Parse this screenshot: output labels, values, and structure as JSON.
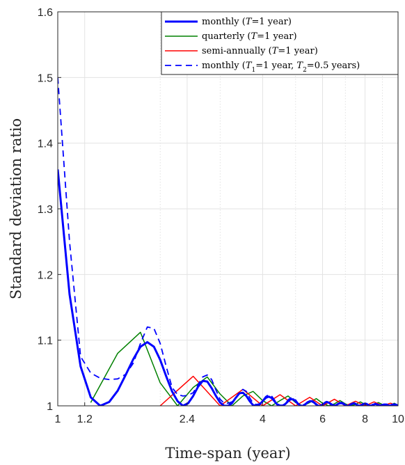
{
  "chart_data": {
    "type": "line",
    "xlabel": "Time-span (year)",
    "ylabel": "Standard deviation ratio",
    "x_scale": "log",
    "xlim": [
      1,
      10
    ],
    "ylim": [
      1,
      1.6
    ],
    "x_ticks": [
      {
        "value": 1,
        "label": "1"
      },
      {
        "value": 1.2,
        "label": "1.2"
      },
      {
        "value": 2.4,
        "label": "2.4"
      },
      {
        "value": 4,
        "label": "4"
      },
      {
        "value": 6,
        "label": "6"
      },
      {
        "value": 8,
        "label": "8"
      },
      {
        "value": 10,
        "label": "10"
      }
    ],
    "y_ticks": [
      {
        "value": 1,
        "label": "1"
      },
      {
        "value": 1.1,
        "label": "1.1"
      },
      {
        "value": 1.2,
        "label": "1.2"
      },
      {
        "value": 1.3,
        "label": "1.3"
      },
      {
        "value": 1.4,
        "label": "1.4"
      },
      {
        "value": 1.5,
        "label": "1.5"
      },
      {
        "value": 1.6,
        "label": "1.6"
      }
    ],
    "grid": true,
    "legend_position": "top-right",
    "series": [
      {
        "name": "monthly (T=1 year)",
        "legend": {
          "pre": "monthly (",
          "sym": "T",
          "mid": "=1 year)"
        },
        "color": "#0000ff",
        "style": "solid-thick",
        "x": [
          1.0,
          1.083,
          1.167,
          1.25,
          1.333,
          1.417,
          1.5,
          1.583,
          1.667,
          1.75,
          1.833,
          1.917,
          2.0,
          2.083,
          2.167,
          2.25,
          2.333,
          2.417,
          2.5,
          2.583,
          2.667,
          2.75,
          2.833,
          2.917,
          3.0,
          3.083,
          3.167,
          3.25,
          3.333,
          3.417,
          3.5,
          3.583,
          3.667,
          3.75,
          3.833,
          3.917,
          4.0,
          4.083,
          4.167,
          4.25,
          4.333,
          4.417,
          4.5,
          4.583,
          4.667,
          4.75,
          4.833,
          4.917,
          5.0,
          5.083,
          5.167,
          5.25,
          5.333,
          5.417,
          5.5,
          5.583,
          5.667,
          5.75,
          5.833,
          5.917,
          6.0,
          6.083,
          6.167,
          6.25,
          6.333,
          6.417,
          6.5,
          6.583,
          6.667,
          6.75,
          6.833,
          6.917,
          7.0,
          7.083,
          7.167,
          7.25,
          7.333,
          7.417,
          7.5,
          7.583,
          7.667,
          7.75,
          7.833,
          7.917,
          8.0,
          8.083,
          8.167,
          8.25,
          8.333,
          8.417,
          8.5,
          8.583,
          8.667,
          8.75,
          8.833,
          8.917,
          9.0,
          9.083,
          9.167,
          9.25,
          9.333,
          9.417,
          9.5,
          9.583,
          9.667,
          9.75,
          9.833,
          9.917,
          10.0
        ],
        "y": [
          1.36,
          1.17,
          1.06,
          1.013,
          1.0,
          1.006,
          1.023,
          1.047,
          1.071,
          1.09,
          1.097,
          1.09,
          1.07,
          1.045,
          1.022,
          1.007,
          1.0,
          1.004,
          1.015,
          1.029,
          1.038,
          1.037,
          1.027,
          1.015,
          1.005,
          1.0,
          1.0,
          1.004,
          1.012,
          1.019,
          1.02,
          1.015,
          1.007,
          1.001,
          1.0,
          1.002,
          1.007,
          1.012,
          1.014,
          1.012,
          1.007,
          1.002,
          1.0,
          1.0,
          1.003,
          1.007,
          1.01,
          1.01,
          1.007,
          1.003,
          1.0,
          1.0,
          1.002,
          1.005,
          1.007,
          1.007,
          1.005,
          1.002,
          1.0,
          1.0,
          1.002,
          1.004,
          1.006,
          1.005,
          1.003,
          1.001,
          1.0,
          1.001,
          1.003,
          1.004,
          1.004,
          1.003,
          1.001,
          1.0,
          1.0,
          1.002,
          1.003,
          1.004,
          1.003,
          1.001,
          1.0,
          1.0,
          1.001,
          1.003,
          1.003,
          1.003,
          1.001,
          1.0,
          1.0,
          1.001,
          1.002,
          1.003,
          1.002,
          1.001,
          1.0,
          1.0,
          1.001,
          1.002,
          1.002,
          1.002,
          1.001,
          1.0,
          1.0,
          1.001,
          1.002,
          1.002,
          1.002,
          1.001,
          1.0
        ]
      },
      {
        "name": "quarterly (T=1 year)",
        "legend": {
          "pre": "quarterly (",
          "sym": "T",
          "mid": "=1 year)"
        },
        "color": "#008000",
        "style": "solid",
        "x": [
          1.25,
          1.5,
          1.75,
          2.0,
          2.25,
          2.5,
          2.75,
          3.0,
          3.25,
          3.5,
          3.75,
          4.0,
          4.25,
          4.5,
          4.75,
          5.0,
          5.25,
          5.5,
          5.75,
          6.0,
          6.25,
          6.5,
          6.75,
          7.0,
          7.25,
          7.5,
          7.75,
          8.0,
          8.25,
          8.5,
          8.75,
          9.0,
          9.25,
          9.5,
          9.75,
          10.0
        ],
        "y": [
          1.005,
          1.08,
          1.112,
          1.035,
          1.0,
          1.028,
          1.044,
          1.018,
          1.0,
          1.015,
          1.022,
          1.008,
          1.0,
          1.008,
          1.015,
          1.005,
          1.0,
          1.005,
          1.011,
          1.004,
          1.0,
          1.003,
          1.008,
          1.003,
          1.0,
          1.002,
          1.006,
          1.002,
          1.0,
          1.002,
          1.005,
          1.002,
          1.0,
          1.001,
          1.004,
          1.001
        ]
      },
      {
        "name": "semi-annually (T=1 year)",
        "legend": {
          "pre": "semi-annually (",
          "sym": "T",
          "mid": "=1 year)"
        },
        "color": "#ff0000",
        "style": "solid",
        "x": [
          2.0,
          2.5,
          3.0,
          3.5,
          4.0,
          4.5,
          5.0,
          5.5,
          6.0,
          6.5,
          7.0,
          7.5,
          8.0,
          8.5,
          9.0,
          9.5,
          10.0
        ],
        "y": [
          1.0,
          1.045,
          1.0,
          1.025,
          1.0,
          1.017,
          1.0,
          1.013,
          1.0,
          1.01,
          1.0,
          1.007,
          1.0,
          1.006,
          1.0,
          1.004,
          1.0
        ]
      },
      {
        "name": "monthly (T1=1 year, T2=0.5 years)",
        "legend": {
          "pre": "monthly (",
          "sym": "T",
          "sub1": "1",
          "mid": "=1 year, ",
          "sym2": "T",
          "sub2": "2",
          "post": "=0.5 years)"
        },
        "color": "#0000ff",
        "style": "dashed",
        "x": [
          1.0,
          1.083,
          1.167,
          1.25,
          1.333,
          1.417,
          1.5,
          1.583,
          1.667,
          1.75,
          1.833,
          1.917,
          2.0,
          2.083,
          2.167,
          2.25,
          2.333,
          2.417,
          2.5,
          2.583,
          2.667,
          2.75,
          2.833,
          2.917,
          3.0,
          3.083,
          3.167,
          3.25,
          3.333,
          3.417,
          3.5,
          3.583,
          3.667,
          3.75,
          3.833,
          3.917,
          4.0,
          4.083,
          4.167,
          4.25,
          4.333,
          4.417,
          4.5,
          4.583,
          4.667,
          4.75,
          4.833,
          4.917,
          5.0,
          5.083,
          5.167,
          5.25,
          5.333,
          5.417,
          5.5,
          5.583,
          5.667,
          5.75,
          5.833,
          5.917,
          6.0,
          6.083,
          6.167,
          6.25,
          6.333,
          6.417,
          6.5,
          6.583,
          6.667,
          6.75,
          6.833,
          6.917,
          7.0,
          7.083,
          7.167,
          7.25,
          7.333,
          7.417,
          7.5,
          7.583,
          7.667,
          7.75,
          7.833,
          7.917,
          8.0,
          8.083,
          8.167,
          8.25,
          8.333,
          8.417,
          8.5,
          8.583,
          8.667,
          8.75,
          8.833,
          8.917,
          9.0,
          9.083,
          9.167,
          9.25,
          9.333,
          9.417,
          9.5,
          9.583,
          9.667,
          9.75,
          9.833,
          9.917,
          10.0
        ],
        "y": [
          1.5,
          1.25,
          1.075,
          1.05,
          1.042,
          1.04,
          1.041,
          1.048,
          1.065,
          1.095,
          1.12,
          1.118,
          1.095,
          1.06,
          1.028,
          1.017,
          1.015,
          1.016,
          1.02,
          1.032,
          1.044,
          1.047,
          1.04,
          1.024,
          1.01,
          1.004,
          1.004,
          1.006,
          1.012,
          1.02,
          1.025,
          1.022,
          1.012,
          1.004,
          1.002,
          1.003,
          1.008,
          1.014,
          1.017,
          1.015,
          1.009,
          1.003,
          1.001,
          1.001,
          1.004,
          1.009,
          1.012,
          1.012,
          1.009,
          1.004,
          1.001,
          1.001,
          1.003,
          1.006,
          1.008,
          1.008,
          1.006,
          1.003,
          1.001,
          1.001,
          1.002,
          1.005,
          1.007,
          1.006,
          1.004,
          1.002,
          1.001,
          1.001,
          1.003,
          1.005,
          1.005,
          1.004,
          1.002,
          1.001,
          1.001,
          1.002,
          1.004,
          1.004,
          1.004,
          1.002,
          1.001,
          1.001,
          1.002,
          1.003,
          1.004,
          1.003,
          1.002,
          1.001,
          1.001,
          1.002,
          1.003,
          1.003,
          1.003,
          1.002,
          1.001,
          1.001,
          1.002,
          1.002,
          1.003,
          1.002,
          1.001,
          1.001,
          1.001,
          1.002,
          1.002,
          1.002,
          1.002,
          1.001,
          1.001
        ]
      }
    ]
  }
}
